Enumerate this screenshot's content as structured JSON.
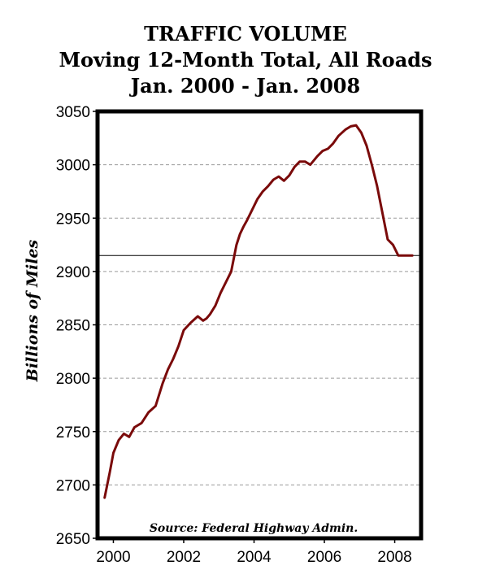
{
  "chart_data": {
    "type": "line",
    "title": "TRAFFIC  VOLUME",
    "subtitle": "Moving 12-Month Total, All Roads",
    "subtitle2": "Jan. 2000 - Jan. 2008",
    "ylabel": "Billions of Miles",
    "xlabel": "",
    "ylim": [
      2650,
      3050
    ],
    "xlim": [
      1999.55,
      2008.75
    ],
    "yticks": [
      2650,
      2700,
      2750,
      2800,
      2850,
      2900,
      2950,
      3000,
      3050
    ],
    "xticks": [
      2000,
      2002,
      2004,
      2006,
      2008
    ],
    "ytick_labels": [
      "2650",
      "2700",
      "2750",
      "2800",
      "2850",
      "2900",
      "2950",
      "3000",
      "3050"
    ],
    "xtick_labels": [
      "2000",
      "2002",
      "2004",
      "2006",
      "2008"
    ],
    "grid": "horizontal dashed",
    "reference_line": 2915,
    "annotation": "Source: Federal Highway Admin.",
    "series_color": "#7a0a0a",
    "series": [
      {
        "x": [
          1999.75,
          1999.9,
          2000.0,
          2000.15,
          2000.3,
          2000.45,
          2000.6,
          2000.8,
          2001.0,
          2001.2,
          2001.4,
          2001.55,
          2001.7,
          2001.85,
          2002.0,
          2002.2,
          2002.4,
          2002.55,
          2002.65,
          2002.75,
          2002.9,
          2003.05,
          2003.2,
          2003.35,
          2003.5,
          2003.6,
          2003.7,
          2003.8,
          2003.95,
          2004.1,
          2004.25,
          2004.4,
          2004.55,
          2004.7,
          2004.85,
          2005.0,
          2005.15,
          2005.3,
          2005.45,
          2005.6,
          2005.8,
          2005.95,
          2006.1,
          2006.25,
          2006.4,
          2006.6,
          2006.75,
          2006.9,
          2007.05,
          2007.2,
          2007.35,
          2007.5,
          2007.65,
          2007.8,
          2007.95,
          2008.1,
          2008.25,
          2008.38,
          2008.5
        ],
        "y": [
          2688,
          2712,
          2730,
          2742,
          2748,
          2745,
          2754,
          2758,
          2768,
          2774,
          2795,
          2808,
          2818,
          2830,
          2845,
          2852,
          2858,
          2854,
          2856,
          2860,
          2868,
          2880,
          2890,
          2900,
          2925,
          2935,
          2942,
          2948,
          2958,
          2968,
          2975,
          2980,
          2986,
          2989,
          2985,
          2990,
          2998,
          3003,
          3003,
          3000,
          3008,
          3013,
          3015,
          3020,
          3027,
          3033,
          3036,
          3037,
          3030,
          3018,
          3000,
          2980,
          2955,
          2930,
          2925,
          2915,
          2915,
          2915,
          2915
        ]
      }
    ]
  }
}
